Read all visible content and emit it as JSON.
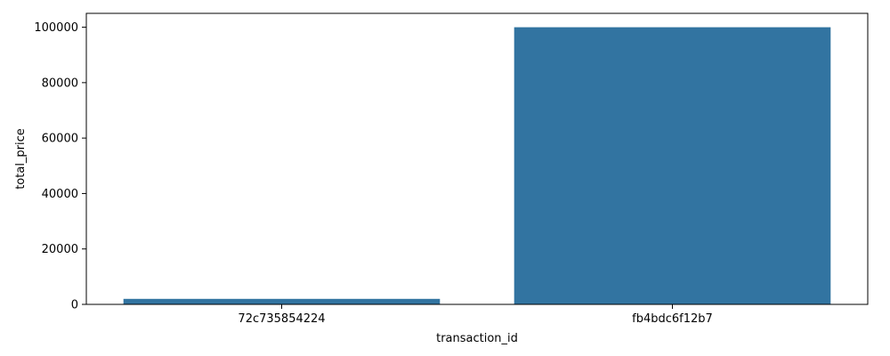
{
  "chart_data": {
    "type": "bar",
    "categories": [
      "72c735854224",
      "fb4bdc6f12b7"
    ],
    "values": [
      2000,
      100000
    ],
    "xlabel": "transaction_id",
    "ylabel": "total_price",
    "ylim": [
      0,
      105000
    ],
    "yticks": [
      0,
      20000,
      40000,
      60000,
      80000,
      100000
    ],
    "ytick_labels": [
      "0",
      "20000",
      "40000",
      "60000",
      "80000",
      "100000"
    ],
    "grid": false,
    "bar_color": "#3274a1"
  }
}
